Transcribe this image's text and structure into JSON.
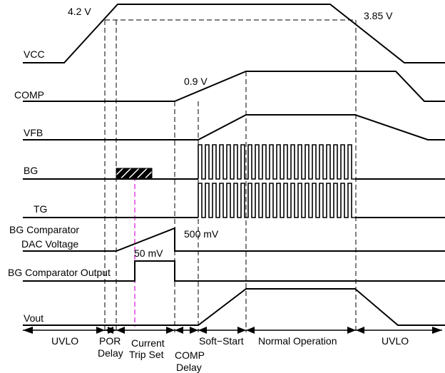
{
  "signals": {
    "vcc": "VCC",
    "comp": "COMP",
    "vfb": "VFB",
    "bg": "BG",
    "tg": "TG",
    "bg_dac_line1": "BG Comparator",
    "bg_dac_line2": "DAC Voltage",
    "bg_comp_output": "BG Comparator Output",
    "vout": "Vout"
  },
  "annotations": {
    "vcc_high": "4.2 V",
    "vcc_low": "3.85 V",
    "comp_level": "0.9 V",
    "dac_high": "500 mV",
    "dac_low": "50 mV"
  },
  "phases": {
    "uvlo_start": "UVLO",
    "por_line1": "POR",
    "por_line2": "Delay",
    "trip_line1": "Current",
    "trip_line2": "Trip Set",
    "comp_delay_line1": "COMP",
    "comp_delay_line2": "Delay",
    "soft_start": "Soft−Start",
    "normal": "Normal Operation",
    "uvlo_end": "UVLO"
  }
}
